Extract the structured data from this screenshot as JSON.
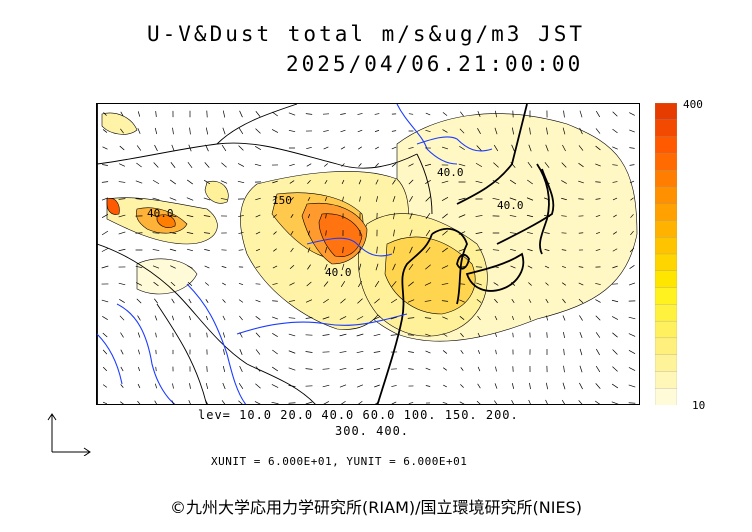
{
  "title": {
    "line1": "U-V&Dust total m/s&ug/m3 JST",
    "line2": "2025/04/06.21:00:00"
  },
  "colorbar": {
    "max_label": "400",
    "min_label": "10",
    "colors": [
      "#fffbd8",
      "#fff7b8",
      "#fff39a",
      "#ffef7c",
      "#fff05f",
      "#fff23f",
      "#fff21f",
      "#ffe600",
      "#ffd500",
      "#ffc400",
      "#ffb200",
      "#ffa100",
      "#ff9000",
      "#ff7d00",
      "#ff6b00",
      "#ff5a00",
      "#f24a00",
      "#e63c00"
    ]
  },
  "levels": {
    "line1": "lev= 10.0 20.0 40.0 60.0 100. 150. 200.",
    "line2": "300. 400."
  },
  "units": "XUNIT = 6.000E+01, YUNIT = 6.000E+01",
  "map_labels": [
    "40.0",
    "40.0",
    "40.0",
    "40.0",
    "150"
  ],
  "copyright": "©九州大学応用力学研究所(RIAM)/国立環境研究所(NIES)"
}
